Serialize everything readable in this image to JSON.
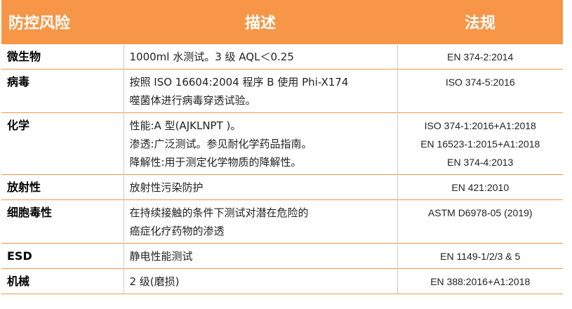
{
  "table": {
    "header": [
      "防控风险",
      "描述",
      "法规"
    ],
    "rows": [
      {
        "risk": "微生物",
        "description": [
          "1000ml 水测试。3 级  AQL＜0.25"
        ],
        "standards": [
          "EN 374-2:2014"
        ]
      },
      {
        "risk": "病毒",
        "description": [
          "按照 ISO 16604:2004 程序 B 使用 Phi-X174",
          "噬菌体进行病毒穿透试验。"
        ],
        "standards": [
          "ISO 374-5:2016"
        ]
      },
      {
        "risk": "化学",
        "description": [
          "性能:A 型(AJKLNPT )。",
          "渗透:广泛测试。参见耐化学药品指南。",
          "降解性:用于测定化学物质的降解性。"
        ],
        "standards": [
          "ISO 374-1:2016+A1:2018",
          "EN 16523-1:2015+A1:2018",
          "EN 374-4:2013"
        ]
      },
      {
        "risk": "放射性",
        "description": [
          "放射性污染防护"
        ],
        "standards": [
          "EN 421:2010"
        ]
      },
      {
        "risk": "细胞毒性",
        "description": [
          "在持续接触的条件下测试对潜在危险的",
          "癌症化疗药物的渗透"
        ],
        "standards": [
          "ASTM D6978-05 (2019)"
        ]
      },
      {
        "risk": "ESD",
        "description": [
          "静电性能测试"
        ],
        "standards": [
          "EN 1149-1/2/3 & 5"
        ]
      },
      {
        "risk": "机械",
        "description": [
          "2 级(磨损)"
        ],
        "standards": [
          "EN 388:2016+A1:2018"
        ]
      }
    ]
  }
}
